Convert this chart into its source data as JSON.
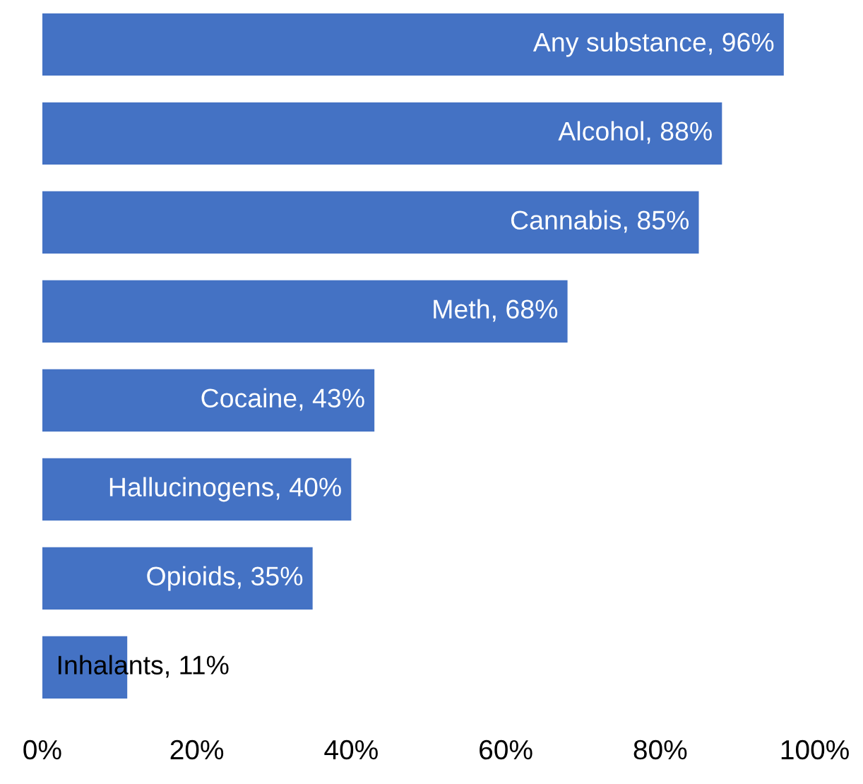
{
  "chart_data": {
    "type": "bar",
    "orientation": "horizontal",
    "categories": [
      null,
      null,
      null,
      null,
      null,
      null,
      null,
      null
    ],
    "values": [
      96,
      88,
      85,
      68,
      43,
      40,
      35,
      11
    ],
    "value_labels": [
      "Any substance, 96%",
      "Alcohol, 88%",
      "Cannabis, 85%",
      "Meth, 68%",
      "Cocaine, 43%",
      "Hallucinogens, 40%",
      "Opioids, 35%",
      "Inhalants, 11%"
    ],
    "color": "#4472c4",
    "xlim": [
      0,
      100
    ],
    "xticks": [
      {
        "value": 0,
        "label": "0%"
      },
      {
        "value": 20,
        "label": "20%"
      },
      {
        "value": 40,
        "label": "40%"
      },
      {
        "value": 60,
        "label": "60%"
      },
      {
        "value": 80,
        "label": "80%"
      },
      {
        "value": 100,
        "label": "100%"
      }
    ],
    "grid": false,
    "legend": false
  }
}
